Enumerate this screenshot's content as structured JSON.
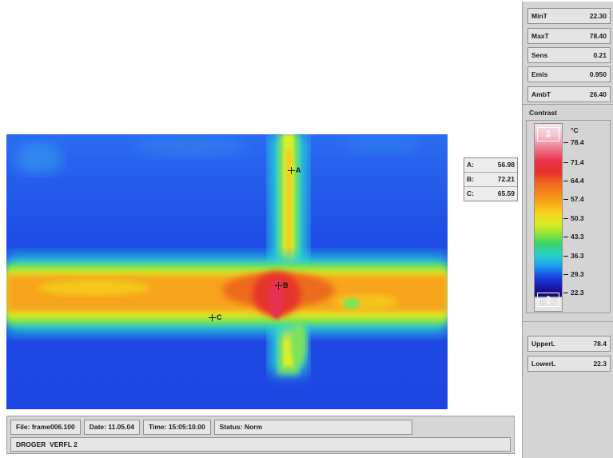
{
  "thermal_image": {
    "markers": [
      {
        "label": "A"
      },
      {
        "label": "B"
      },
      {
        "label": "C"
      }
    ]
  },
  "readout": {
    "rows": [
      {
        "label": "A:",
        "value": "56.98"
      },
      {
        "label": "B:",
        "value": "72.21"
      },
      {
        "label": "C:",
        "value": "65.59"
      }
    ]
  },
  "status_bar": {
    "file": "File: frame006.100",
    "date": "Date: 11.05.04",
    "time": "Time: 15:05:10.00",
    "status": "Status: Norm",
    "comment": "DROGER  VERFL 2"
  },
  "panel": {
    "params": [
      {
        "label": "MinT",
        "value": "22.30"
      },
      {
        "label": "MaxT",
        "value": "78.40"
      },
      {
        "label": "Sens",
        "value": "0.21"
      },
      {
        "label": "Emis",
        "value": "0.950"
      },
      {
        "label": "AmbT",
        "value": "26.40"
      }
    ],
    "contrast_label": "Contrast",
    "unit": "°C",
    "scale_ticks": [
      "78.4",
      "71.4",
      "64.4",
      "57.4",
      "50.3",
      "43.3",
      "36.3",
      "29.3",
      "22.3"
    ],
    "upper": {
      "label": "UpperL",
      "value": "78.4"
    },
    "lower": {
      "label": "LowerL",
      "value": "22.3"
    }
  },
  "colors": {
    "cold": "#1f4fe6",
    "hot": "#e0232f",
    "panel_bg": "#d4d4d4"
  },
  "icons": [
    "crosshair-icon",
    "arrow-up-icon",
    "arrow-down-icon"
  ]
}
